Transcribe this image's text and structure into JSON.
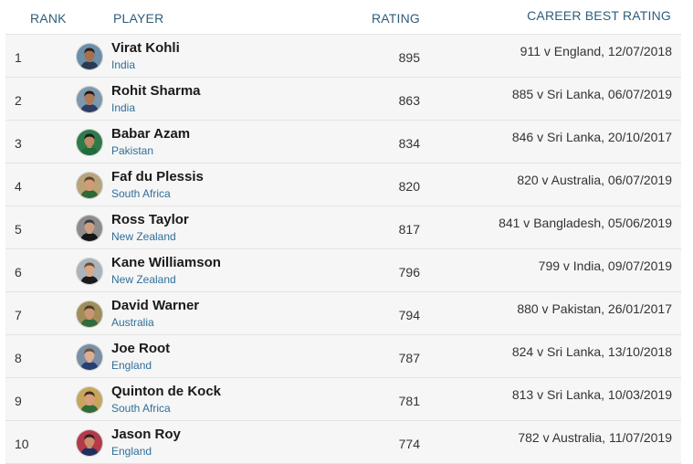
{
  "header": {
    "rank": "RANK",
    "player": "PLAYER",
    "rating": "RATING",
    "career_best": "CAREER BEST RATING"
  },
  "players": [
    {
      "rank": "1",
      "name": "Virat Kohli",
      "country": "India",
      "rating": "895",
      "best": "911 v England, 12/07/2018",
      "avatar_colors": {
        "bg": "#6b8fa8",
        "skin": "#a86f4c",
        "hair": "#2a1d16",
        "shirt": "#2a3a55"
      }
    },
    {
      "rank": "2",
      "name": "Rohit Sharma",
      "country": "India",
      "rating": "863",
      "best": "885 v Sri Lanka, 06/07/2019",
      "avatar_colors": {
        "bg": "#7e98ad",
        "skin": "#b07a55",
        "hair": "#1f1a17",
        "shirt": "#2e3f66"
      }
    },
    {
      "rank": "3",
      "name": "Babar Azam",
      "country": "Pakistan",
      "rating": "834",
      "best": "846 v Sri Lanka, 20/10/2017",
      "avatar_colors": {
        "bg": "#2f7a4a",
        "skin": "#c08a62",
        "hair": "#1b1b1b",
        "shirt": "#1f6b3a"
      }
    },
    {
      "rank": "4",
      "name": "Faf du Plessis",
      "country": "South Africa",
      "rating": "820",
      "best": "820 v Australia, 06/07/2019",
      "avatar_colors": {
        "bg": "#b9a37a",
        "skin": "#d39b73",
        "hair": "#5b4332",
        "shirt": "#2d6a36"
      }
    },
    {
      "rank": "5",
      "name": "Ross Taylor",
      "country": "New Zealand",
      "rating": "817",
      "best": "841 v Bangladesh, 05/06/2019",
      "avatar_colors": {
        "bg": "#8c8c8c",
        "skin": "#cf9e80",
        "hair": "#3a3a3a",
        "shirt": "#151515"
      }
    },
    {
      "rank": "6",
      "name": "Kane Williamson",
      "country": "New Zealand",
      "rating": "796",
      "best": "799 v India, 09/07/2019",
      "avatar_colors": {
        "bg": "#a9b4bc",
        "skin": "#d6a888",
        "hair": "#6a4b33",
        "shirt": "#1b1b1b"
      }
    },
    {
      "rank": "7",
      "name": "David Warner",
      "country": "Australia",
      "rating": "794",
      "best": "880 v Pakistan, 26/01/2017",
      "avatar_colors": {
        "bg": "#a08d5a",
        "skin": "#c99573",
        "hair": "#4a3a2a",
        "shirt": "#2f6b3b"
      }
    },
    {
      "rank": "8",
      "name": "Joe Root",
      "country": "England",
      "rating": "787",
      "best": "824 v Sri Lanka, 13/10/2018",
      "avatar_colors": {
        "bg": "#7a8ea6",
        "skin": "#dcae8f",
        "hair": "#6d5235",
        "shirt": "#283f73"
      }
    },
    {
      "rank": "9",
      "name": "Quinton de Kock",
      "country": "South Africa",
      "rating": "781",
      "best": "813 v Sri Lanka, 10/03/2019",
      "avatar_colors": {
        "bg": "#c7a55c",
        "skin": "#d7a07a",
        "hair": "#3c2c1f",
        "shirt": "#2f6c39"
      }
    },
    {
      "rank": "10",
      "name": "Jason Roy",
      "country": "England",
      "rating": "774",
      "best": "782 v Australia, 11/07/2019",
      "avatar_colors": {
        "bg": "#b23a4a",
        "skin": "#c98e6b",
        "hair": "#2a2120",
        "shirt": "#1e2f5f"
      }
    }
  ]
}
